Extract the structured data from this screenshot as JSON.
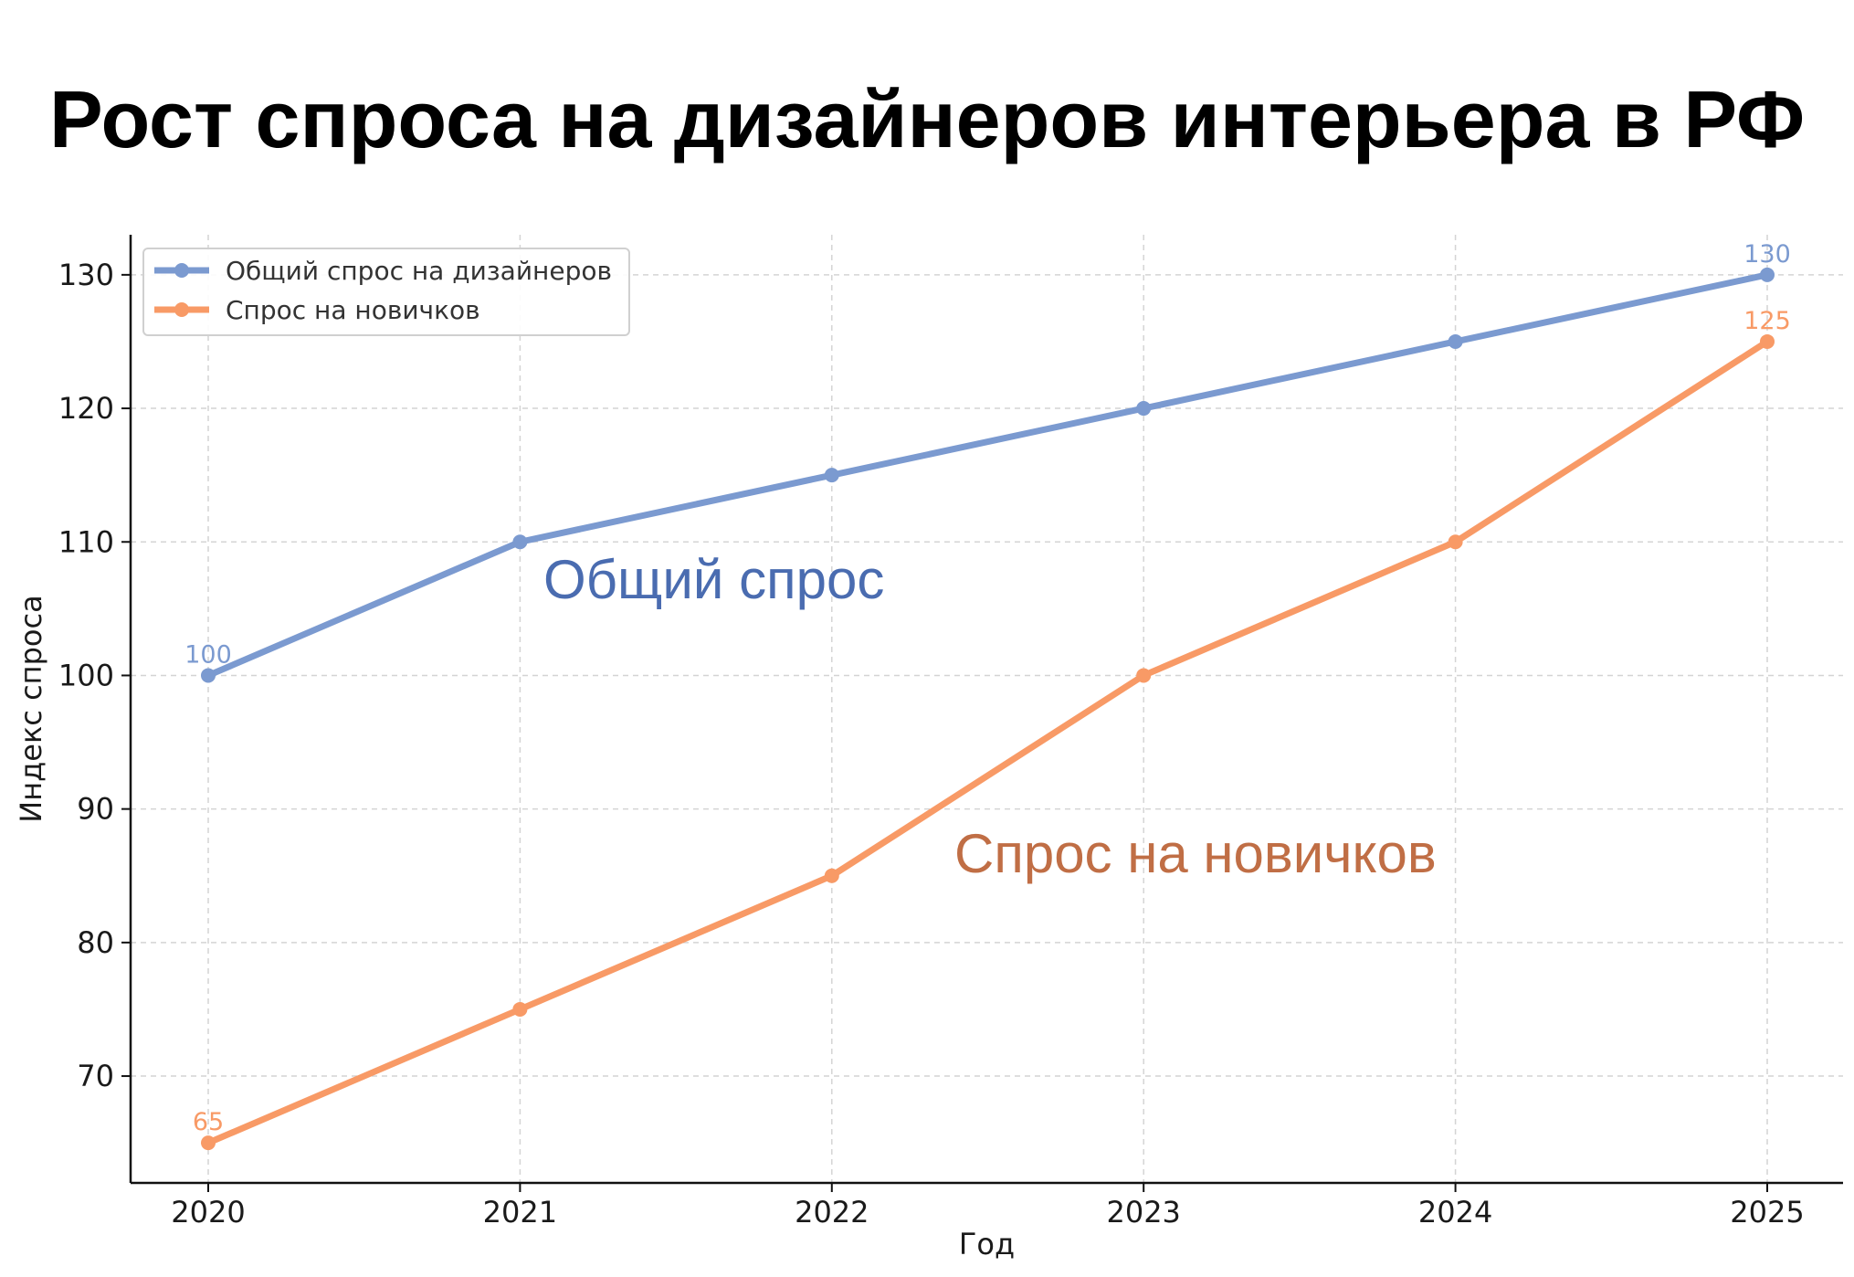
{
  "chart_data": {
    "type": "line",
    "title": "Рост спроса на дизайнеров интерьера в РФ",
    "xlabel": "Год",
    "ylabel": "Индекс спроса",
    "categories": [
      "2020",
      "2021",
      "2022",
      "2023",
      "2024",
      "2025"
    ],
    "ylim": [
      62,
      133
    ],
    "yticks": [
      70,
      80,
      90,
      100,
      110,
      120,
      130
    ],
    "grid": true,
    "legend_position": "top-left",
    "series": [
      {
        "name": "Общий спрос на дизайнеров",
        "values": [
          100,
          110,
          115,
          120,
          125,
          130
        ],
        "color": "#7b9ad0",
        "endpoint_labels": [
          "100",
          "130"
        ]
      },
      {
        "name": "Спрос на новичков",
        "values": [
          65,
          75,
          85,
          100,
          110,
          125
        ],
        "color": "#f89a66",
        "endpoint_labels": [
          "65",
          "125"
        ]
      }
    ],
    "annotations": [
      {
        "text": "Общий спрос",
        "color": "#4a6cb0"
      },
      {
        "text": "Спрос на новичков",
        "color": "#c06e45"
      }
    ]
  }
}
